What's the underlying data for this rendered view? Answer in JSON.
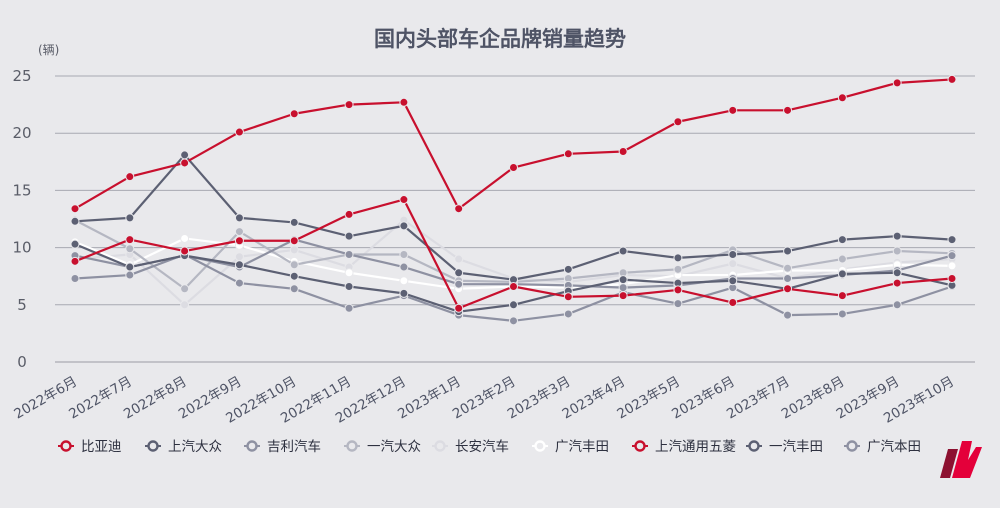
{
  "chart_data": {
    "type": "line",
    "title": "国内头部车企品牌销量趋势",
    "yunit": "(辆)",
    "ylim": [
      0,
      25
    ],
    "yticks": [
      "0",
      "5",
      "10",
      "15",
      "20",
      "25"
    ],
    "grid": true,
    "legend_position": "bottom",
    "categories": [
      "2022年6月",
      "2022年7月",
      "2022年8月",
      "2022年9月",
      "2022年10月",
      "2022年11月",
      "2022年12月",
      "2023年1月",
      "2023年2月",
      "2023年3月",
      "2023年4月",
      "2023年5月",
      "2023年6月",
      "2023年7月",
      "2023年8月",
      "2023年9月",
      "2023年10月"
    ],
    "series": [
      {
        "name": "比亚迪",
        "color": "#c8102e",
        "values": [
          13.4,
          16.2,
          17.4,
          20.1,
          21.7,
          22.5,
          22.7,
          13.4,
          17.0,
          18.2,
          18.4,
          21.0,
          22.0,
          22.0,
          23.1,
          24.4,
          24.7
        ]
      },
      {
        "name": "上汽大众",
        "color": "#5c6073",
        "values": [
          12.3,
          12.6,
          18.1,
          12.6,
          12.2,
          11.0,
          11.9,
          7.8,
          7.2,
          8.1,
          9.7,
          9.1,
          9.4,
          9.7,
          10.7,
          11.0,
          10.7
        ]
      },
      {
        "name": "吉利汽车",
        "color": "#8e91a2",
        "values": [
          7.3,
          7.6,
          9.4,
          6.9,
          6.4,
          4.7,
          5.8,
          4.1,
          3.6,
          4.2,
          6.1,
          5.1,
          6.5,
          4.1,
          4.2,
          5.0,
          6.6
        ]
      },
      {
        "name": "一汽大众",
        "color": "#b5b7c2",
        "values": [
          12.4,
          9.9,
          6.4,
          11.4,
          8.5,
          9.4,
          9.4,
          7.1,
          7.0,
          7.3,
          7.8,
          8.1,
          9.8,
          8.2,
          9.0,
          9.7,
          9.5
        ]
      },
      {
        "name": "长安汽车",
        "color": "#dcdce2",
        "values": [
          9.0,
          9.4,
          5.0,
          9.2,
          9.8,
          8.3,
          12.4,
          9.0,
          7.3,
          7.0,
          7.6,
          7.5,
          8.6,
          7.3,
          8.1,
          8.7,
          9.0
        ]
      },
      {
        "name": "广汽丰田",
        "color": "#ffffff",
        "values": [
          10.5,
          8.5,
          10.8,
          10.2,
          8.8,
          7.8,
          7.1,
          6.4,
          6.6,
          6.5,
          6.8,
          7.6,
          7.6,
          8.0,
          8.0,
          8.5,
          8.4
        ]
      },
      {
        "name": "上汽通用五菱",
        "color": "#c8102e",
        "values": [
          8.8,
          10.7,
          9.7,
          10.6,
          10.6,
          12.9,
          14.2,
          4.7,
          6.6,
          5.7,
          5.8,
          6.3,
          5.2,
          6.4,
          5.8,
          6.9,
          7.3
        ]
      },
      {
        "name": "一汽丰田",
        "color": "#5c6073",
        "values": [
          10.3,
          8.3,
          9.3,
          8.5,
          7.5,
          6.6,
          6.0,
          4.4,
          5.0,
          6.2,
          7.2,
          6.9,
          7.1,
          6.4,
          7.7,
          7.8,
          6.7
        ]
      },
      {
        "name": "广汽本田",
        "color": "#8e91a2",
        "values": [
          9.3,
          8.3,
          9.3,
          8.3,
          10.7,
          9.4,
          8.3,
          6.8,
          6.8,
          6.7,
          6.5,
          6.7,
          7.3,
          7.3,
          7.6,
          8.0,
          9.3
        ]
      }
    ]
  },
  "logo": {
    "name": "brand-logo",
    "color_primary": "#e4003a",
    "color_secondary": "#8c1030"
  }
}
